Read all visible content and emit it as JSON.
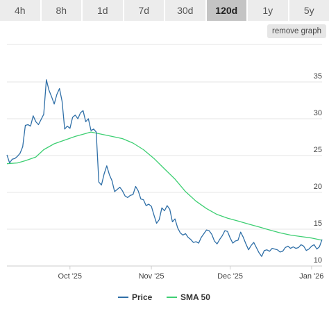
{
  "range_tabs": [
    "4h",
    "8h",
    "1d",
    "7d",
    "30d",
    "120d",
    "1y",
    "5y"
  ],
  "active_tab": "120d",
  "remove_graph_label": "remove graph",
  "chart_data": {
    "type": "line",
    "title": "",
    "xlabel": "",
    "ylabel": "",
    "grid": true,
    "legend_position": "bottom",
    "x_range": [
      "2025-09-07",
      "2026-01-05"
    ],
    "ylim": [
      10,
      36.5
    ],
    "y_ticks": [
      10,
      15,
      20,
      25,
      30,
      35
    ],
    "x_ticks": [
      {
        "date": "2025-10-01",
        "label": "Oct '25"
      },
      {
        "date": "2025-11-01",
        "label": "Nov '25"
      },
      {
        "date": "2025-12-01",
        "label": "Dec '25"
      },
      {
        "date": "2026-01-01",
        "label": "Jan '26"
      }
    ],
    "series": [
      {
        "name": "Price",
        "color": "#2f6fa7",
        "points": [
          [
            "2025-09-07",
            25.1
          ],
          [
            "2025-09-08",
            24.0
          ],
          [
            "2025-09-09",
            24.5
          ],
          [
            "2025-09-10",
            24.6
          ],
          [
            "2025-09-11",
            24.9
          ],
          [
            "2025-09-12",
            25.3
          ],
          [
            "2025-09-13",
            26.2
          ],
          [
            "2025-09-14",
            29.1
          ],
          [
            "2025-09-15",
            29.2
          ],
          [
            "2025-09-16",
            29.0
          ],
          [
            "2025-09-17",
            30.4
          ],
          [
            "2025-09-18",
            29.6
          ],
          [
            "2025-09-19",
            29.2
          ],
          [
            "2025-09-20",
            29.9
          ],
          [
            "2025-09-21",
            30.6
          ],
          [
            "2025-09-22",
            35.3
          ],
          [
            "2025-09-23",
            33.9
          ],
          [
            "2025-09-24",
            33.0
          ],
          [
            "2025-09-25",
            32.0
          ],
          [
            "2025-09-26",
            33.3
          ],
          [
            "2025-09-27",
            34.1
          ],
          [
            "2025-09-28",
            32.4
          ],
          [
            "2025-09-29",
            28.6
          ],
          [
            "2025-09-30",
            29.0
          ],
          [
            "2025-10-01",
            28.7
          ],
          [
            "2025-10-02",
            30.2
          ],
          [
            "2025-10-03",
            30.5
          ],
          [
            "2025-10-04",
            30.0
          ],
          [
            "2025-10-05",
            30.8
          ],
          [
            "2025-10-06",
            31.1
          ],
          [
            "2025-10-07",
            29.6
          ],
          [
            "2025-10-08",
            30.0
          ],
          [
            "2025-10-09",
            28.4
          ],
          [
            "2025-10-10",
            28.6
          ],
          [
            "2025-10-11",
            28.2
          ],
          [
            "2025-10-12",
            21.4
          ],
          [
            "2025-10-13",
            21.0
          ],
          [
            "2025-10-14",
            22.5
          ],
          [
            "2025-10-15",
            23.6
          ],
          [
            "2025-10-16",
            22.4
          ],
          [
            "2025-10-17",
            21.6
          ],
          [
            "2025-10-18",
            20.1
          ],
          [
            "2025-10-19",
            20.4
          ],
          [
            "2025-10-20",
            20.7
          ],
          [
            "2025-10-21",
            20.2
          ],
          [
            "2025-10-22",
            19.5
          ],
          [
            "2025-10-23",
            19.3
          ],
          [
            "2025-10-24",
            19.6
          ],
          [
            "2025-10-25",
            19.7
          ],
          [
            "2025-10-26",
            20.8
          ],
          [
            "2025-10-27",
            20.2
          ],
          [
            "2025-10-28",
            19.1
          ],
          [
            "2025-10-29",
            19.0
          ],
          [
            "2025-10-30",
            18.2
          ],
          [
            "2025-10-31",
            18.4
          ],
          [
            "2025-11-01",
            18.1
          ],
          [
            "2025-11-02",
            16.9
          ],
          [
            "2025-11-03",
            15.8
          ],
          [
            "2025-11-04",
            16.3
          ],
          [
            "2025-11-05",
            17.9
          ],
          [
            "2025-11-06",
            17.5
          ],
          [
            "2025-11-07",
            18.2
          ],
          [
            "2025-11-08",
            17.7
          ],
          [
            "2025-11-09",
            16.0
          ],
          [
            "2025-11-10",
            16.4
          ],
          [
            "2025-11-11",
            15.2
          ],
          [
            "2025-11-12",
            14.5
          ],
          [
            "2025-11-13",
            14.2
          ],
          [
            "2025-11-14",
            14.4
          ],
          [
            "2025-11-15",
            13.9
          ],
          [
            "2025-11-16",
            13.6
          ],
          [
            "2025-11-17",
            13.2
          ],
          [
            "2025-11-18",
            13.3
          ],
          [
            "2025-11-19",
            13.1
          ],
          [
            "2025-11-20",
            13.9
          ],
          [
            "2025-11-21",
            14.4
          ],
          [
            "2025-11-22",
            14.9
          ],
          [
            "2025-11-23",
            14.8
          ],
          [
            "2025-11-24",
            14.3
          ],
          [
            "2025-11-25",
            13.4
          ],
          [
            "2025-11-26",
            13.0
          ],
          [
            "2025-11-27",
            13.6
          ],
          [
            "2025-11-28",
            14.1
          ],
          [
            "2025-11-29",
            14.8
          ],
          [
            "2025-11-30",
            14.7
          ],
          [
            "2025-12-01",
            13.8
          ],
          [
            "2025-12-02",
            13.1
          ],
          [
            "2025-12-03",
            13.4
          ],
          [
            "2025-12-04",
            13.5
          ],
          [
            "2025-12-05",
            14.6
          ],
          [
            "2025-12-06",
            13.9
          ],
          [
            "2025-12-07",
            13.0
          ],
          [
            "2025-12-08",
            12.2
          ],
          [
            "2025-12-09",
            12.8
          ],
          [
            "2025-12-10",
            13.2
          ],
          [
            "2025-12-11",
            12.5
          ],
          [
            "2025-12-12",
            11.8
          ],
          [
            "2025-12-13",
            11.3
          ],
          [
            "2025-12-14",
            12.1
          ],
          [
            "2025-12-15",
            12.2
          ],
          [
            "2025-12-16",
            12.0
          ],
          [
            "2025-12-17",
            12.4
          ],
          [
            "2025-12-18",
            12.3
          ],
          [
            "2025-12-19",
            12.2
          ],
          [
            "2025-12-20",
            11.9
          ],
          [
            "2025-12-21",
            12.0
          ],
          [
            "2025-12-22",
            12.5
          ],
          [
            "2025-12-23",
            12.7
          ],
          [
            "2025-12-24",
            12.4
          ],
          [
            "2025-12-25",
            12.6
          ],
          [
            "2025-12-26",
            12.4
          ],
          [
            "2025-12-27",
            12.5
          ],
          [
            "2025-12-28",
            12.9
          ],
          [
            "2025-12-29",
            12.7
          ],
          [
            "2025-12-30",
            12.1
          ],
          [
            "2025-12-31",
            12.3
          ],
          [
            "2026-01-01",
            12.7
          ],
          [
            "2026-01-02",
            12.9
          ],
          [
            "2026-01-03",
            12.3
          ],
          [
            "2026-01-04",
            12.6
          ],
          [
            "2026-01-05",
            13.6
          ]
        ]
      },
      {
        "name": "SMA 50",
        "color": "#3ecf73",
        "points": [
          [
            "2025-09-07",
            23.9
          ],
          [
            "2025-09-11",
            24.0
          ],
          [
            "2025-09-14",
            24.3
          ],
          [
            "2025-09-18",
            24.8
          ],
          [
            "2025-09-21",
            25.8
          ],
          [
            "2025-09-25",
            26.6
          ],
          [
            "2025-09-29",
            27.1
          ],
          [
            "2025-10-03",
            27.6
          ],
          [
            "2025-10-07",
            28.0
          ],
          [
            "2025-10-09",
            28.2
          ],
          [
            "2025-10-13",
            27.9
          ],
          [
            "2025-10-17",
            27.6
          ],
          [
            "2025-10-21",
            27.3
          ],
          [
            "2025-10-25",
            26.7
          ],
          [
            "2025-10-29",
            25.8
          ],
          [
            "2025-11-02",
            24.6
          ],
          [
            "2025-11-06",
            23.2
          ],
          [
            "2025-11-10",
            21.8
          ],
          [
            "2025-11-14",
            20.1
          ],
          [
            "2025-11-18",
            18.8
          ],
          [
            "2025-11-22",
            17.8
          ],
          [
            "2025-11-26",
            17.0
          ],
          [
            "2025-11-30",
            16.5
          ],
          [
            "2025-12-04",
            16.1
          ],
          [
            "2025-12-08",
            15.7
          ],
          [
            "2025-12-12",
            15.3
          ],
          [
            "2025-12-16",
            14.9
          ],
          [
            "2025-12-20",
            14.5
          ],
          [
            "2025-12-24",
            14.2
          ],
          [
            "2025-12-28",
            14.0
          ],
          [
            "2026-01-01",
            13.8
          ],
          [
            "2026-01-05",
            13.5
          ]
        ]
      }
    ]
  }
}
